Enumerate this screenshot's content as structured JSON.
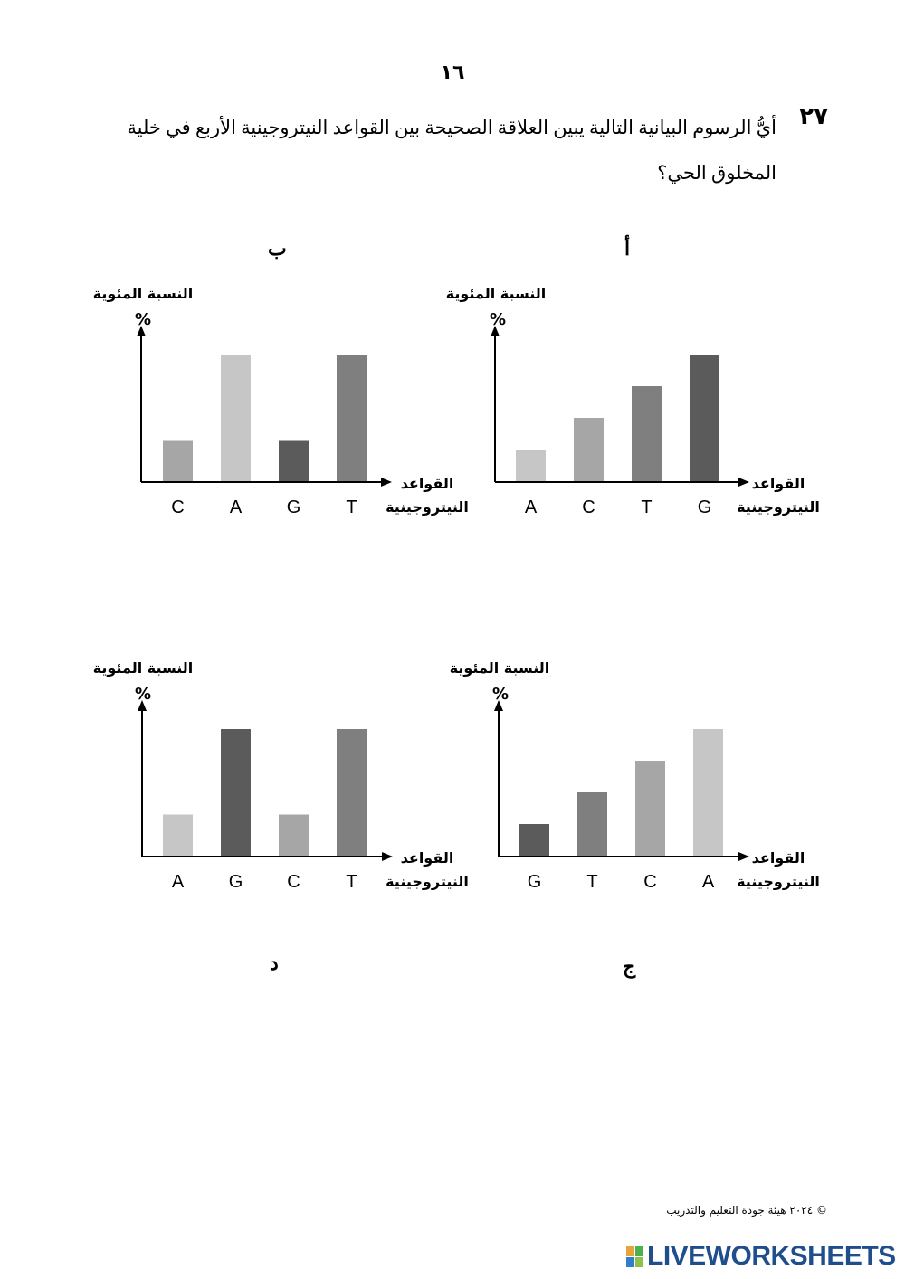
{
  "page_number": "١٦",
  "question": {
    "number": "٢٧",
    "text": "أيُّ الرسوم البيانية التالية يبين العلاقة الصحيحة بين القواعد النيتروجينية الأربع في خلية المخلوق الحي؟"
  },
  "chart_data": [
    {
      "id": "alif",
      "type": "bar",
      "option_label": "أ",
      "ylabel": "النسبة المئوية",
      "yunit": "%",
      "xlabel": [
        "القواعد",
        "النيتروجينية"
      ],
      "categories": [
        "A",
        "C",
        "T",
        "G"
      ],
      "values": [
        1,
        2,
        3,
        4
      ],
      "colors": [
        "#c6c6c6",
        "#a6a6a6",
        "#7f7f7f",
        "#5b5b5b"
      ]
    },
    {
      "id": "ba",
      "type": "bar",
      "option_label": "ب",
      "ylabel": "النسبة المئوية",
      "yunit": "%",
      "xlabel": [
        "القواعد",
        "النيتروجينية"
      ],
      "categories": [
        "C",
        "A",
        "G",
        "T"
      ],
      "values": [
        1.3,
        4,
        1.3,
        4
      ],
      "colors": [
        "#a6a6a6",
        "#c6c6c6",
        "#5b5b5b",
        "#7f7f7f"
      ]
    },
    {
      "id": "jim",
      "type": "bar",
      "option_label": "ج",
      "ylabel": "النسبة المئوية",
      "yunit": "%",
      "xlabel": [
        "القواعد",
        "النيتروجينية"
      ],
      "categories": [
        "G",
        "T",
        "C",
        "A"
      ],
      "values": [
        1,
        2,
        3,
        4
      ],
      "colors": [
        "#5b5b5b",
        "#7f7f7f",
        "#a6a6a6",
        "#c6c6c6"
      ]
    },
    {
      "id": "dal",
      "type": "bar",
      "option_label": "د",
      "ylabel": "النسبة المئوية",
      "yunit": "%",
      "xlabel": [
        "القواعد",
        "النيتروجينية"
      ],
      "categories": [
        "A",
        "G",
        "C",
        "T"
      ],
      "values": [
        1.3,
        4,
        1.3,
        4
      ],
      "colors": [
        "#c6c6c6",
        "#5b5b5b",
        "#a6a6a6",
        "#7f7f7f"
      ]
    }
  ],
  "footer": {
    "copyright": "© ٢٠٢٤ هيئة جودة التعليم والتدريب",
    "brand": "LIVEWORKSHEETS",
    "brand_colors": [
      "#e8a33d",
      "#4caf50",
      "#2f80c8",
      "#8bc34a"
    ]
  }
}
